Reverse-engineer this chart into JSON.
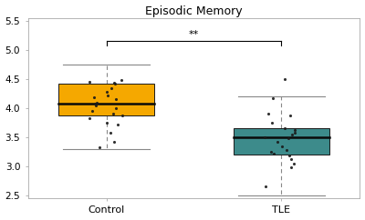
{
  "title": "Episodic Memory",
  "categories": [
    "Control",
    "TLE"
  ],
  "control_box": {
    "median": 4.07,
    "q1": 3.87,
    "q3": 4.42,
    "whisker_low": 3.3,
    "whisker_high": 4.75,
    "outliers": [],
    "jitter": [
      4.15,
      4.45,
      4.35,
      4.42,
      4.28,
      4.1,
      4.05,
      4.0,
      4.07,
      3.95,
      3.9,
      3.87,
      3.82,
      3.75,
      3.72,
      3.58,
      3.42,
      3.32,
      4.48,
      4.43,
      4.22,
      4.18
    ]
  },
  "tle_box": {
    "median": 3.5,
    "q1": 3.2,
    "q3": 3.65,
    "whisker_low": 2.5,
    "whisker_high": 4.2,
    "outliers": [
      4.5
    ],
    "jitter": [
      3.65,
      3.62,
      3.58,
      3.55,
      3.5,
      3.48,
      3.42,
      3.35,
      3.28,
      3.25,
      3.22,
      3.18,
      3.12,
      3.05,
      2.98,
      2.65,
      3.9,
      3.88,
      3.75,
      4.17
    ]
  },
  "control_color": "#F5A800",
  "tle_color": "#3D8B8B",
  "box_edge_color": "#1a1a1a",
  "median_color": "#0a0a0a",
  "whisker_color": "#888888",
  "cap_color": "#888888",
  "jitter_color": "#1a1a1a",
  "ylim": [
    2.45,
    5.55
  ],
  "yticks": [
    2.5,
    3.0,
    3.5,
    4.0,
    4.5,
    5.0,
    5.5
  ],
  "sig_text": "**",
  "background_color": "#ffffff",
  "title_fontsize": 9,
  "label_fontsize": 8,
  "tick_fontsize": 7.5
}
